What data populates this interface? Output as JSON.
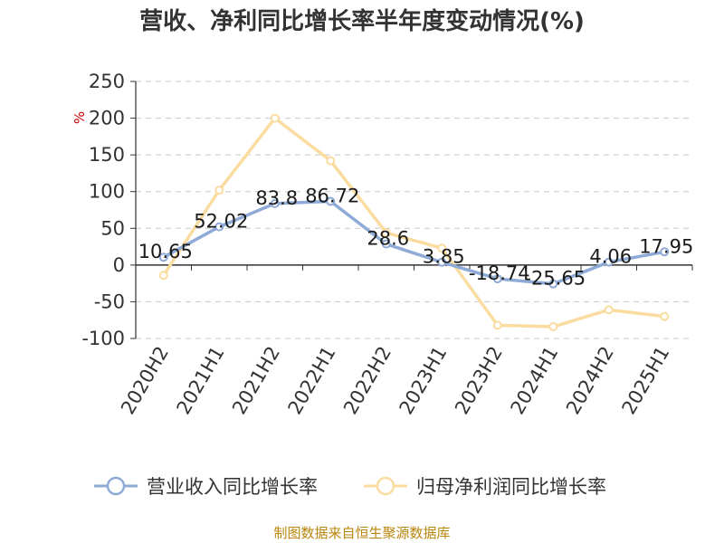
{
  "chart_data": {
    "type": "line",
    "title": "营收、净利同比增长率半年度变动情况(%)",
    "ylabel": "%",
    "xlabel": "",
    "ylim": [
      -100,
      250
    ],
    "yticks": [
      250,
      200,
      150,
      100,
      50,
      0,
      -50,
      -100
    ],
    "categories": [
      "2020H2",
      "2021H1",
      "2021H2",
      "2022H1",
      "2022H2",
      "2023H1",
      "2023H2",
      "2024H1",
      "2024H2",
      "2025H1"
    ],
    "grid": true,
    "legend_position": "bottom",
    "series": [
      {
        "name": "营业收入同比增长率",
        "color": "#8eaad6",
        "values": [
          10.65,
          52.02,
          83.8,
          86.72,
          28.6,
          3.85,
          -18.74,
          -25.65,
          4.06,
          17.95
        ],
        "labels": [
          "10.65",
          "52.02",
          "83.8",
          "86.72",
          "28.6",
          "3.85",
          "-18.74",
          "-25.65",
          "4.06",
          "17.95"
        ]
      },
      {
        "name": "归母净利润同比增长率",
        "color": "#fbdca0",
        "values": [
          -14,
          102,
          200,
          142,
          44,
          23,
          -82,
          -84,
          -61,
          -70
        ]
      }
    ]
  },
  "source": "制图数据来自恒生聚源数据库"
}
